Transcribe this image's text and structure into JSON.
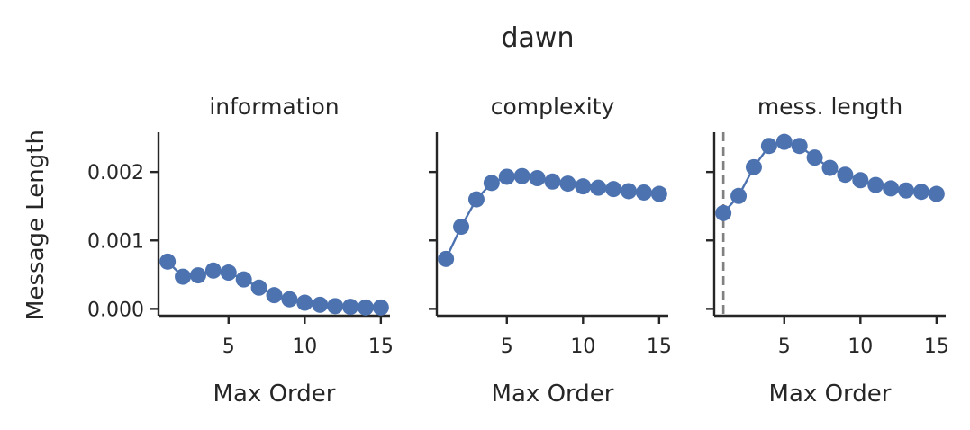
{
  "figure": {
    "suptitle": "dawn",
    "ylabel": "Message Length"
  },
  "chart_data": [
    {
      "type": "line",
      "title": "information",
      "xlabel": "Max Order",
      "ylabel": "Message Length",
      "xlim": [
        0.4,
        15.6
      ],
      "ylim": [
        -0.0001,
        0.00258
      ],
      "xticks": [
        5,
        10,
        15
      ],
      "xtick_labels": [
        "5",
        "10",
        "15"
      ],
      "yticks": [
        0.0,
        0.001,
        0.002
      ],
      "ytick_labels": [
        "0.000",
        "0.001",
        "0.002"
      ],
      "series": [
        {
          "color": "#4c72b0",
          "x": [
            1,
            2,
            3,
            4,
            5,
            6,
            7,
            8,
            9,
            10,
            11,
            12,
            13,
            14,
            15
          ],
          "y": [
            0.00069,
            0.00047,
            0.00049,
            0.00056,
            0.00053,
            0.00043,
            0.00031,
            0.0002,
            0.00014,
            9e-05,
            6e-05,
            4e-05,
            3e-05,
            2e-05,
            2e-05
          ]
        }
      ],
      "vline": null
    },
    {
      "type": "line",
      "title": "complexity",
      "xlabel": "Max Order",
      "ylabel": "",
      "xlim": [
        0.4,
        15.6
      ],
      "ylim": [
        -0.0001,
        0.00258
      ],
      "xticks": [
        5,
        10,
        15
      ],
      "xtick_labels": [
        "5",
        "10",
        "15"
      ],
      "yticks": [
        0.0,
        0.001,
        0.002
      ],
      "ytick_labels": [],
      "series": [
        {
          "color": "#4c72b0",
          "x": [
            1,
            2,
            3,
            4,
            5,
            6,
            7,
            8,
            9,
            10,
            11,
            12,
            13,
            14,
            15
          ],
          "y": [
            0.00073,
            0.0012,
            0.0016,
            0.00184,
            0.00193,
            0.00194,
            0.00191,
            0.00186,
            0.00183,
            0.00179,
            0.00177,
            0.00175,
            0.00172,
            0.0017,
            0.00168
          ]
        }
      ],
      "vline": null
    },
    {
      "type": "line",
      "title": "mess. length",
      "xlabel": "Max Order",
      "ylabel": "",
      "xlim": [
        0.4,
        15.6
      ],
      "ylim": [
        -0.0001,
        0.00258
      ],
      "xticks": [
        5,
        10,
        15
      ],
      "xtick_labels": [
        "5",
        "10",
        "15"
      ],
      "yticks": [
        0.0,
        0.001,
        0.002
      ],
      "ytick_labels": [],
      "series": [
        {
          "color": "#4c72b0",
          "x": [
            1,
            2,
            3,
            4,
            5,
            6,
            7,
            8,
            9,
            10,
            11,
            12,
            13,
            14,
            15
          ],
          "y": [
            0.0014,
            0.00165,
            0.00207,
            0.00238,
            0.00244,
            0.00238,
            0.00221,
            0.00206,
            0.00196,
            0.00188,
            0.00181,
            0.00176,
            0.00173,
            0.00171,
            0.00168
          ]
        }
      ],
      "vline": {
        "x": 1,
        "style": "dashed",
        "color": "#808080"
      }
    }
  ]
}
